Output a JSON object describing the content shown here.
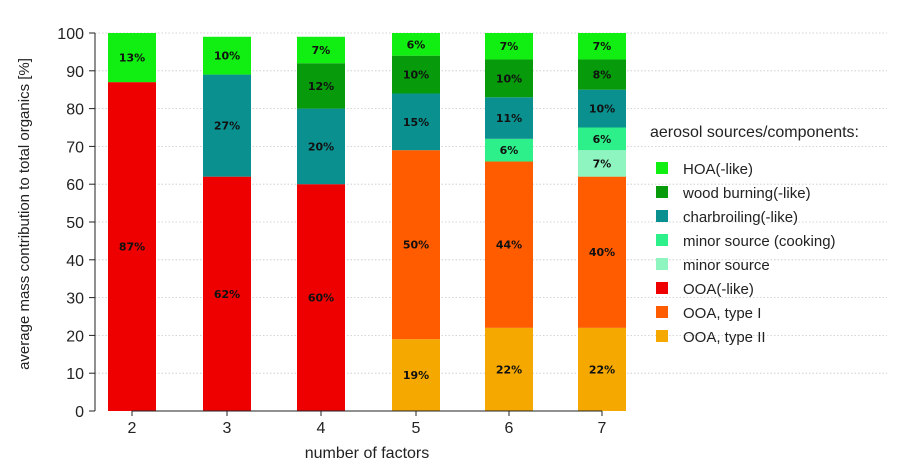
{
  "chart_data": {
    "type": "bar",
    "stacked": true,
    "xlabel": "number of factors",
    "ylabel": "average mass contribution to total organics [%]",
    "ylim": [
      0,
      100
    ],
    "yticks": [
      0,
      10,
      20,
      30,
      40,
      50,
      60,
      70,
      80,
      90,
      100
    ],
    "grid": true,
    "legend_position": "right",
    "legend_title": "aerosol sources/components:",
    "categories": [
      "2",
      "3",
      "4",
      "5",
      "6",
      "7"
    ],
    "series": [
      {
        "name": "OOA, type II",
        "color": "#f5a800",
        "values": [
          0,
          0,
          0,
          19,
          22,
          22
        ]
      },
      {
        "name": "OOA, type I",
        "color": "#ff5c00",
        "values": [
          0,
          0,
          0,
          50,
          44,
          40
        ]
      },
      {
        "name": "OOA(-like)",
        "color": "#ee0000",
        "values": [
          87,
          62,
          60,
          0,
          0,
          0
        ]
      },
      {
        "name": "minor source",
        "color": "#8ef5c0",
        "values": [
          0,
          0,
          0,
          0,
          0,
          7
        ]
      },
      {
        "name": "minor source (cooking)",
        "color": "#2df08a",
        "values": [
          0,
          0,
          0,
          0,
          6,
          6
        ]
      },
      {
        "name": "charbroiling(-like)",
        "color": "#0b9090",
        "values": [
          0,
          27,
          20,
          15,
          11,
          10
        ]
      },
      {
        "name": "wood burning(-like)",
        "color": "#079a0b",
        "values": [
          0,
          0,
          12,
          10,
          10,
          8
        ]
      },
      {
        "name": "HOA(-like)",
        "color": "#11ee11",
        "values": [
          13,
          10,
          7,
          6,
          7,
          7
        ]
      }
    ],
    "legend_order": [
      "HOA(-like)",
      "wood burning(-like)",
      "charbroiling(-like)",
      "minor source (cooking)",
      "minor source",
      "OOA(-like)",
      "OOA, type I",
      "OOA, type II"
    ]
  }
}
